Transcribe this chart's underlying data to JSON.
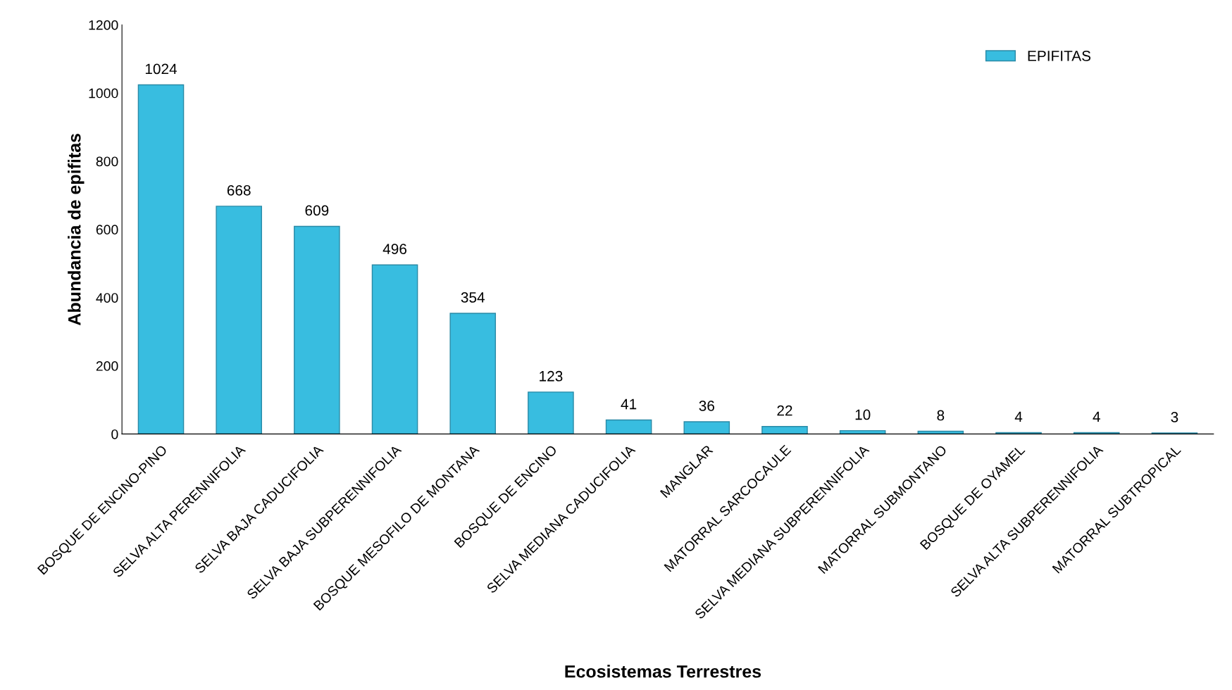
{
  "chart_data": {
    "type": "bar",
    "xlabel": "Ecosistemas Terrestres",
    "ylabel": "Abundancia de epifitas",
    "categories": [
      "BOSQUE DE ENCINO-PINO",
      "SELVA ALTA PERENNIFOLIA",
      "SELVA BAJA CADUCIFOLIA",
      "SELVA BAJA SUBPERENNIFOLIA",
      "BOSQUE MESOFILO DE MONTANA",
      "BOSQUE DE ENCINO",
      "SELVA MEDIANA CADUCIFOLIA",
      "MANGLAR",
      "MATORRAL SARCOCAULE",
      "SELVA MEDIANA SUBPERENNIFOLIA",
      "MATORRAL SUBMONTANO",
      "BOSQUE DE OYAMEL",
      "SELVA ALTA SUBPERENNIFOLIA",
      "MATORRAL SUBTROPICAL"
    ],
    "series": [
      {
        "name": "EPIFITAS",
        "color": "#38bde0",
        "values": [
          1024,
          668,
          609,
          496,
          354,
          123,
          41,
          36,
          22,
          10,
          8,
          4,
          4,
          3
        ]
      }
    ],
    "ylim": [
      0,
      1200
    ],
    "yticks": [
      0,
      200,
      400,
      600,
      800,
      1000,
      1200
    ],
    "data_labels": true,
    "legend": "top right",
    "grid": false
  }
}
